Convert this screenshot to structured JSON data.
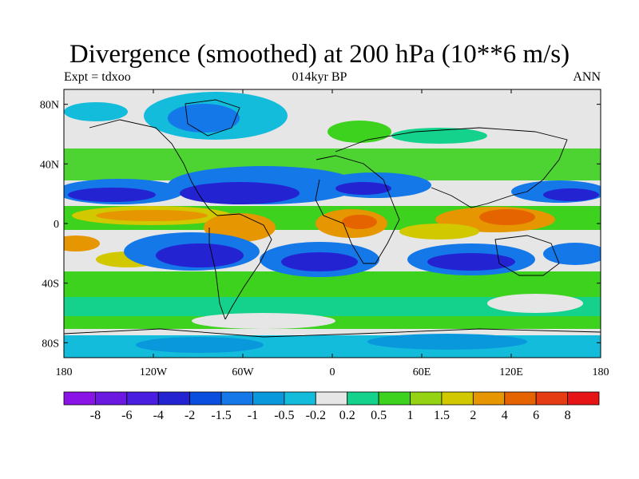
{
  "title": "Divergence (smoothed) at 200 hPa (10**6 m/s)",
  "left_label": "Expt = tdxoo",
  "center_label": "014kyr BP",
  "right_label": "ANN",
  "map": {
    "projection": "cylindrical-equidistant",
    "lon_range": [
      -180,
      180
    ],
    "lat_range": [
      -90,
      90
    ],
    "lat_ticks": [
      {
        "value": 80,
        "label": "80N"
      },
      {
        "value": 40,
        "label": "40N"
      },
      {
        "value": 0,
        "label": "0"
      },
      {
        "value": -40,
        "label": "40S"
      },
      {
        "value": -80,
        "label": "80S"
      }
    ],
    "lon_ticks": [
      {
        "value": -180,
        "label": "180"
      },
      {
        "value": -120,
        "label": "120W"
      },
      {
        "value": -60,
        "label": "60W"
      },
      {
        "value": 0,
        "label": "0"
      },
      {
        "value": 60,
        "label": "60E"
      },
      {
        "value": 120,
        "label": "120E"
      },
      {
        "value": 180,
        "label": "180"
      }
    ],
    "missing_color": "#e6e6e6"
  },
  "colorbar": {
    "colors": [
      "#8a14e6",
      "#6b18e0",
      "#4a1ee0",
      "#2323d2",
      "#0a4ee0",
      "#1478e8",
      "#0a98dc",
      "#14bcdc",
      "#e6e6e6",
      "#14d28c",
      "#3cd21e",
      "#96d214",
      "#d2c800",
      "#e69600",
      "#e66400",
      "#e63c14",
      "#e61414"
    ],
    "labels": [
      "-8",
      "-6",
      "-4",
      "-2",
      "-1.5",
      "-1",
      "-0.5",
      "-0.2",
      "0.2",
      "0.5",
      "1",
      "1.5",
      "2",
      "4",
      "6",
      "8"
    ]
  }
}
